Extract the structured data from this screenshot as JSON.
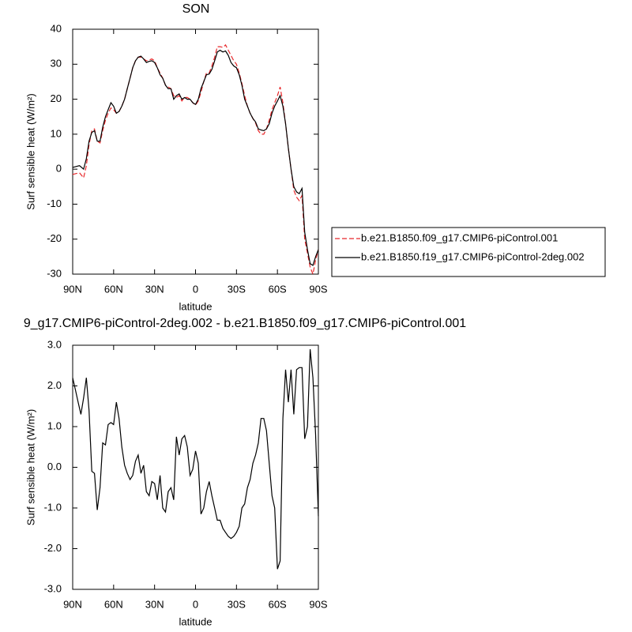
{
  "chart_data": [
    {
      "type": "line",
      "title": "SON",
      "xlabel": "latitude",
      "ylabel": "Surf sensible heat (W/m²)",
      "xlim": [
        90,
        -90
      ],
      "ylim": [
        -30,
        40
      ],
      "xticks": [
        {
          "value": 90,
          "label": "90N"
        },
        {
          "value": 60,
          "label": "60N"
        },
        {
          "value": 30,
          "label": "30N"
        },
        0,
        {
          "value": -30,
          "label": "30S"
        },
        {
          "value": -60,
          "label": "60S"
        },
        {
          "value": -90,
          "label": "90S"
        }
      ],
      "yticks": [
        -30,
        -20,
        -10,
        0,
        10,
        20,
        30,
        40
      ],
      "legend": "outside-right",
      "x": [
        90,
        85,
        82,
        80,
        78,
        76,
        74,
        72,
        70,
        68,
        66,
        64,
        62,
        60,
        58,
        56,
        54,
        52,
        50,
        48,
        46,
        44,
        42,
        40,
        38,
        36,
        34,
        32,
        30,
        28,
        26,
        24,
        22,
        20,
        18,
        16,
        14,
        12,
        10,
        8,
        6,
        4,
        2,
        0,
        -2,
        -4,
        -6,
        -8,
        -10,
        -12,
        -14,
        -16,
        -18,
        -20,
        -22,
        -24,
        -26,
        -28,
        -30,
        -32,
        -34,
        -36,
        -38,
        -40,
        -42,
        -44,
        -46,
        -48,
        -50,
        -52,
        -54,
        -56,
        -58,
        -60,
        -62,
        -64,
        -66,
        -68,
        -70,
        -72,
        -74,
        -76,
        -78,
        -80,
        -82,
        -84,
        -86,
        -88,
        -90
      ],
      "series": [
        {
          "name": "b.e21.B1850.f09_g17.CMIP6-piControl.001",
          "color": "#e8272a",
          "dashed": true,
          "values": [
            -1.5,
            -1,
            -2.5,
            1,
            7,
            11,
            11.5,
            8,
            7.5,
            11,
            14,
            16,
            17.5,
            17,
            16,
            16.5,
            18,
            20,
            23,
            26,
            29,
            31,
            32,
            32,
            31.5,
            31,
            31.2,
            31.5,
            31,
            29,
            27.5,
            26,
            24,
            23.5,
            23,
            21,
            20.5,
            21,
            19.5,
            20.5,
            20.5,
            20,
            19,
            18.3,
            19.5,
            22,
            25,
            27.5,
            27.5,
            29.5,
            32,
            35,
            35,
            34.8,
            35.5,
            34,
            32.5,
            31,
            30,
            27.5,
            24.5,
            21,
            18,
            16,
            14.5,
            13.2,
            11,
            10,
            10,
            11.5,
            14,
            17,
            19,
            21,
            23.5,
            19,
            13,
            6,
            0,
            -6,
            -8,
            -9,
            -7.5,
            -20,
            -24,
            -28,
            -30,
            -26,
            -23
          ]
        },
        {
          "name": "b.e21.B1850.f19_g17.CMIP6-piControl-2deg.002",
          "color": "#000000",
          "dashed": false,
          "values": [
            0.5,
            1,
            0,
            3,
            8,
            10.5,
            11,
            8,
            8,
            12,
            15,
            17,
            19,
            18,
            16,
            16.5,
            18,
            20,
            23,
            26,
            29,
            31,
            32,
            32.3,
            31.5,
            30.5,
            30.8,
            31,
            30.5,
            29,
            27,
            26,
            24,
            23,
            23,
            20,
            21,
            21.5,
            20,
            20.5,
            20,
            20,
            19,
            18.5,
            20,
            23,
            25,
            27,
            27.2,
            28.5,
            31,
            33.5,
            34,
            33.5,
            33.8,
            32.5,
            30.5,
            29.5,
            29,
            27,
            24,
            20,
            18,
            16,
            14.5,
            13.5,
            11.5,
            11.2,
            11,
            11.5,
            13,
            16,
            18,
            19.5,
            21,
            18,
            13,
            6,
            0,
            -5,
            -6.5,
            -7,
            -5.5,
            -18,
            -23,
            -27,
            -27.5,
            -25,
            -23
          ]
        }
      ]
    },
    {
      "type": "line",
      "title": "9_g17.CMIP6-piControl-2deg.002 - b.e21.B1850.f09_g17.CMIP6-piControl.001",
      "xlabel": "latitude",
      "ylabel": "Surf sensible heat (W/m²)",
      "xlim": [
        90,
        -90
      ],
      "ylim": [
        -3,
        3
      ],
      "xticks": [
        {
          "value": 90,
          "label": "90N"
        },
        {
          "value": 60,
          "label": "60N"
        },
        {
          "value": 30,
          "label": "30N"
        },
        0,
        {
          "value": -30,
          "label": "30S"
        },
        {
          "value": -60,
          "label": "60S"
        },
        {
          "value": -90,
          "label": "90S"
        }
      ],
      "yticks": [
        {
          "value": -3,
          "label": "-3.0"
        },
        {
          "value": -2,
          "label": "-2.0"
        },
        {
          "value": -1,
          "label": "-1.0"
        },
        {
          "value": 0,
          "label": "0.0"
        },
        {
          "value": 1,
          "label": "1.0"
        },
        {
          "value": 2,
          "label": "2.0"
        },
        {
          "value": 3,
          "label": "3.0"
        }
      ],
      "x": [
        90,
        88,
        86,
        84,
        82,
        80,
        78,
        76,
        74,
        72,
        70,
        68,
        66,
        64,
        62,
        60,
        58,
        56,
        54,
        52,
        50,
        48,
        46,
        44,
        42,
        40,
        38,
        36,
        34,
        32,
        30,
        28,
        26,
        24,
        22,
        20,
        18,
        16,
        14,
        12,
        10,
        8,
        6,
        4,
        2,
        0,
        -2,
        -4,
        -6,
        -8,
        -10,
        -12,
        -14,
        -16,
        -18,
        -20,
        -22,
        -24,
        -26,
        -28,
        -30,
        -32,
        -34,
        -36,
        -38,
        -40,
        -42,
        -44,
        -46,
        -48,
        -50,
        -52,
        -54,
        -56,
        -58,
        -60,
        -62,
        -64,
        -66,
        -68,
        -70,
        -72,
        -74,
        -76,
        -78,
        -80,
        -82,
        -84,
        -86,
        -88,
        -90
      ],
      "series": [
        {
          "color": "#000000",
          "dashed": false,
          "values": [
            2.2,
            1.9,
            1.6,
            1.3,
            1.7,
            2.2,
            1.4,
            -0.1,
            -0.15,
            -1.05,
            -0.5,
            0.6,
            0.55,
            1.05,
            1.1,
            1.05,
            1.6,
            1.2,
            0.5,
            0.05,
            -0.15,
            -0.3,
            -0.2,
            0.15,
            0.3,
            -0.15,
            0.05,
            -0.6,
            -0.7,
            -0.35,
            -0.4,
            -0.8,
            -0.2,
            -1.0,
            -1.1,
            -0.6,
            -0.5,
            -0.8,
            0.75,
            0.3,
            0.7,
            0.78,
            0.5,
            -0.2,
            -0.05,
            0.4,
            0.1,
            -1.15,
            -1.0,
            -0.6,
            -0.35,
            -0.7,
            -1.0,
            -1.3,
            -1.3,
            -1.5,
            -1.6,
            -1.7,
            -1.75,
            -1.7,
            -1.6,
            -1.45,
            -1.0,
            -0.9,
            -0.5,
            -0.3,
            0.1,
            0.3,
            0.6,
            1.2,
            1.2,
            0.9,
            0.1,
            -0.7,
            -1.0,
            -2.5,
            -2.3,
            1.2,
            2.4,
            1.6,
            2.4,
            1.3,
            2.4,
            2.45,
            2.45,
            0.7,
            1.0,
            2.9,
            2.2,
            0.8,
            -1.2
          ]
        }
      ]
    }
  ]
}
